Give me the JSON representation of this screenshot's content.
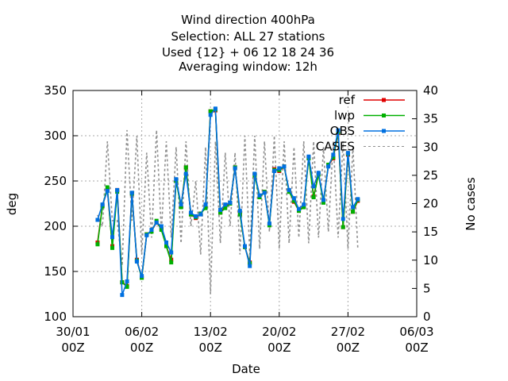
{
  "chart_data": {
    "type": "line",
    "title": [
      "Wind direction 400hPa",
      "Selection: ALL      27 stations",
      "Used {12} + 06 12 18 24 36",
      "Averaging window: 12h"
    ],
    "xlabel": "Date",
    "ylabel": "deg",
    "y2label": "No cases",
    "xlim": [
      "30/01 00Z",
      "06/03 00Z"
    ],
    "xticks": [
      {
        "top": "30/01",
        "bottom": "00Z"
      },
      {
        "top": "06/02",
        "bottom": "00Z"
      },
      {
        "top": "13/02",
        "bottom": "00Z"
      },
      {
        "top": "20/02",
        "bottom": "00Z"
      },
      {
        "top": "27/02",
        "bottom": "00Z"
      },
      {
        "top": "06/03",
        "bottom": "00Z"
      }
    ],
    "ylim": [
      100,
      350
    ],
    "yticks": [
      "100",
      "150",
      "200",
      "250",
      "300",
      "350"
    ],
    "y2lim": [
      0,
      40
    ],
    "y2ticks": [
      "0",
      "5",
      "10",
      "15",
      "20",
      "25",
      "30",
      "35",
      "40"
    ],
    "legend": "top-right",
    "grid": true,
    "x_days": [
      2.5,
      3.0,
      3.5,
      4.0,
      4.5,
      5.0,
      5.5,
      6.0,
      6.5,
      7.0,
      7.5,
      8.0,
      8.5,
      9.0,
      9.5,
      10.0,
      10.5,
      11.0,
      11.5,
      12.0,
      12.5,
      13.0,
      13.5,
      14.0,
      14.5,
      15.0,
      15.5,
      16.0,
      16.5,
      17.0,
      17.5,
      18.0,
      18.5,
      19.0,
      19.5,
      20.0,
      20.5,
      21.0,
      21.5,
      22.0,
      22.5,
      23.0,
      23.5,
      24.0,
      24.5,
      25.0,
      25.5,
      26.0,
      26.5,
      27.0,
      27.5,
      28.0,
      28.5,
      29.0
    ],
    "series": [
      {
        "name": "ref",
        "color": "#e00000",
        "axis": "y",
        "values": [
          182,
          223,
          240,
          178,
          240,
          138,
          134,
          236,
          163,
          143,
          191,
          195,
          204,
          197,
          178,
          163,
          251,
          222,
          265,
          213,
          209,
          214,
          221,
          327,
          328,
          215,
          222,
          225,
          265,
          214,
          177,
          160,
          257,
          233,
          238,
          202,
          263,
          261,
          266,
          239,
          227,
          217,
          222,
          276,
          233,
          258,
          228,
          267,
          275,
          303,
          199,
          279,
          216,
          228
        ]
      },
      {
        "name": "lwp",
        "color": "#00b000",
        "axis": "y",
        "values": [
          180,
          222,
          243,
          176,
          238,
          138,
          133,
          236,
          162,
          143,
          191,
          194,
          206,
          196,
          178,
          160,
          250,
          221,
          265,
          213,
          210,
          214,
          220,
          327,
          329,
          215,
          220,
          225,
          265,
          213,
          177,
          159,
          256,
          232,
          238,
          201,
          262,
          262,
          266,
          238,
          228,
          217,
          221,
          275,
          232,
          257,
          226,
          268,
          276,
          304,
          199,
          280,
          216,
          229
        ]
      },
      {
        "name": "OBS",
        "color": "#0070e0",
        "axis": "y",
        "values": [
          207,
          224,
          239,
          188,
          240,
          124,
          139,
          237,
          161,
          145,
          190,
          196,
          204,
          200,
          182,
          171,
          252,
          224,
          258,
          215,
          211,
          213,
          224,
          323,
          330,
          218,
          224,
          226,
          264,
          217,
          178,
          156,
          258,
          234,
          237,
          203,
          261,
          264,
          266,
          240,
          231,
          219,
          224,
          277,
          244,
          259,
          229,
          266,
          279,
          306,
          208,
          281,
          221,
          230
        ]
      },
      {
        "name": "CASES",
        "color": "#909090",
        "axis": "y2",
        "values": [
          18,
          16,
          31,
          17,
          17,
          9,
          33,
          17,
          32,
          11,
          29,
          14,
          33,
          15,
          31,
          14,
          30,
          13,
          31,
          16,
          24,
          11,
          30,
          4,
          31,
          13,
          29,
          16,
          29,
          11,
          32,
          11,
          32,
          12,
          31,
          15,
          32,
          12,
          31,
          13,
          30,
          14,
          31,
          13,
          31,
          14,
          30,
          15,
          31,
          14,
          31,
          12,
          30,
          12
        ]
      }
    ]
  }
}
